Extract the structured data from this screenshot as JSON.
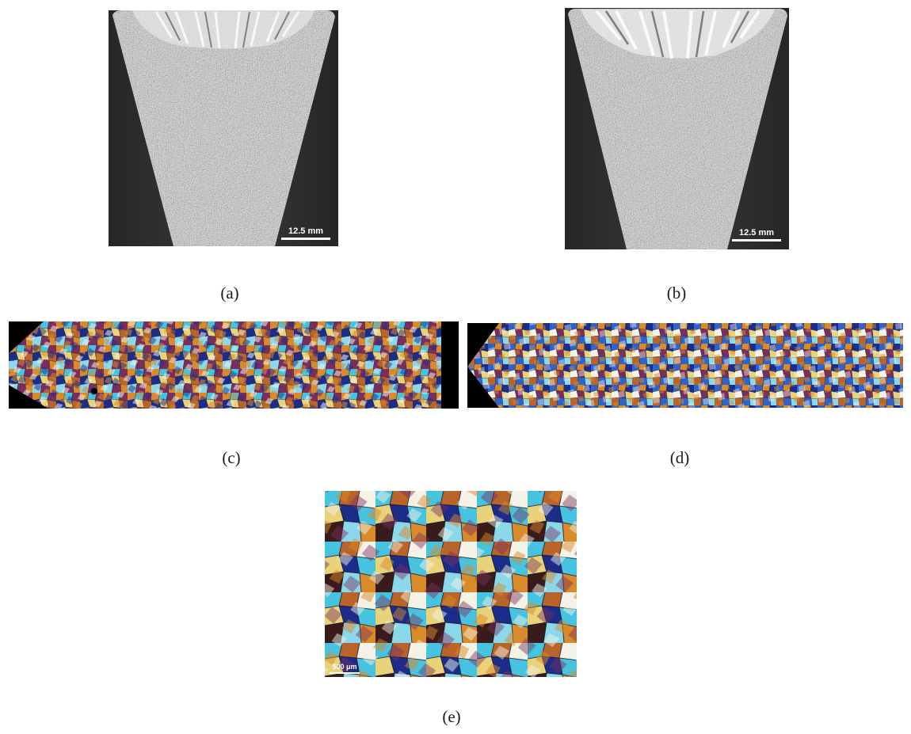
{
  "figure": {
    "panels": [
      {
        "id": "a",
        "caption": "(a)",
        "scale_label": "12.5 mm",
        "content": "grayscale macrograph of V-shaped ingot cross-section with columnar grains at top"
      },
      {
        "id": "b",
        "caption": "(b)",
        "scale_label": "12.5 mm",
        "content": "grayscale macrograph of V-shaped ingot cross-section with columnar grains at top"
      },
      {
        "id": "c",
        "caption": "(c)",
        "content": "polarized-light color micrograph of fine equiaxed grains, elongated section"
      },
      {
        "id": "d",
        "caption": "(d)",
        "content": "polarized-light color micrograph of fine equiaxed grains, elongated section"
      },
      {
        "id": "e",
        "caption": "(e)",
        "scale_label": "500 μm",
        "content": "polarized-light color micrograph close-up of equiaxed grains"
      }
    ],
    "colors": {
      "background": "#ffffff",
      "mount_dark": "#2f2f2f",
      "sample_gray": "#b9b9b9",
      "grain_palette": [
        "#1c2c8a",
        "#2f63c9",
        "#47c3e0",
        "#8ad8ea",
        "#d98a2a",
        "#b8642a",
        "#7a2e5e",
        "#e8d27a",
        "#f4f2e6",
        "#3a1b1b"
      ]
    }
  }
}
